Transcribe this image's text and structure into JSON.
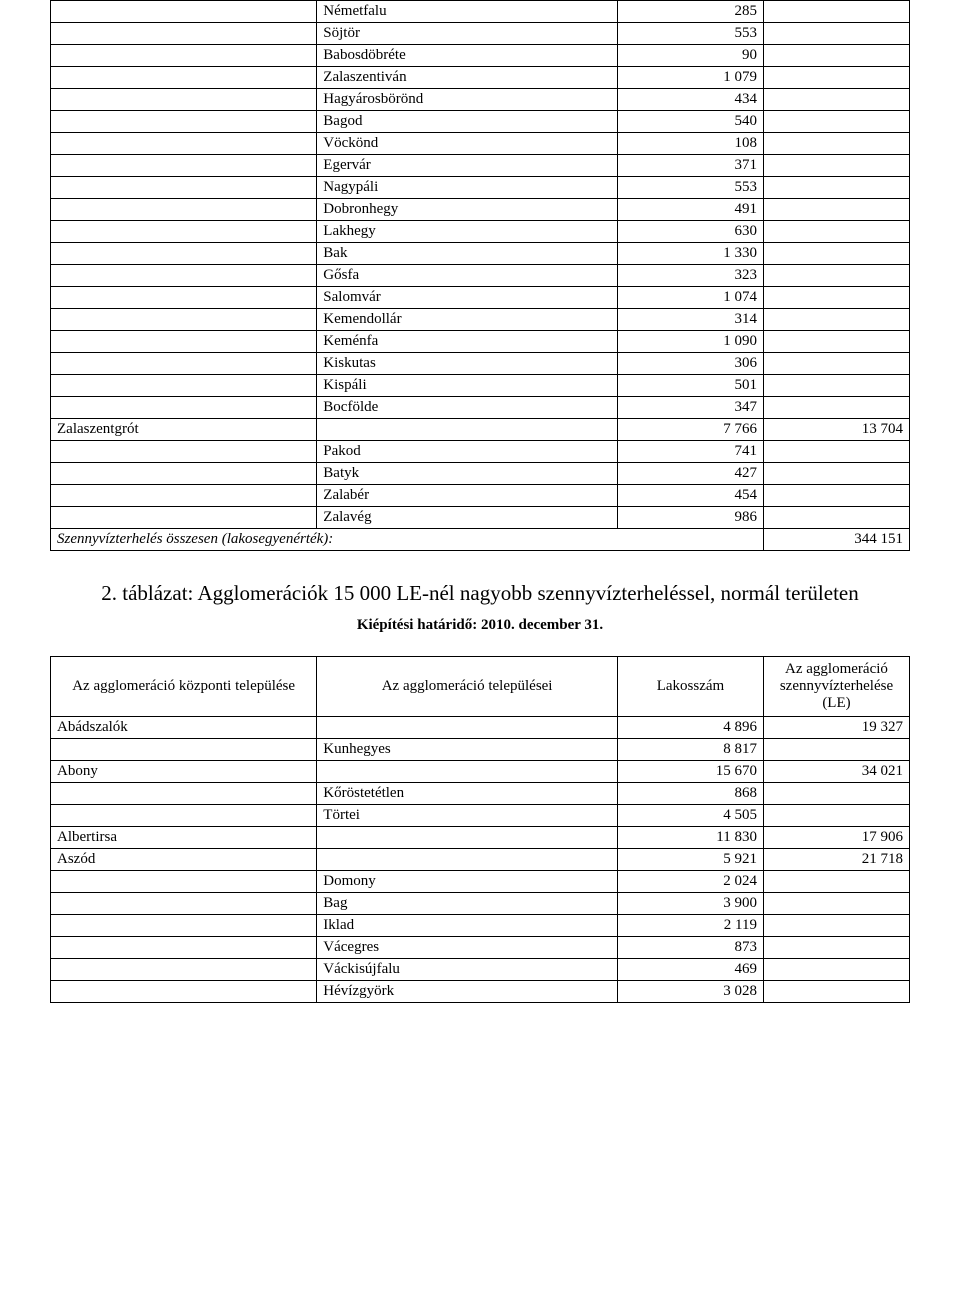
{
  "table1": {
    "rows": [
      {
        "c1": "",
        "c2": "Németfalu",
        "c3": "285",
        "c4": ""
      },
      {
        "c1": "",
        "c2": "Söjtör",
        "c3": "553",
        "c4": ""
      },
      {
        "c1": "",
        "c2": "Babosdöbréte",
        "c3": "90",
        "c4": ""
      },
      {
        "c1": "",
        "c2": "Zalaszentiván",
        "c3": "1 079",
        "c4": ""
      },
      {
        "c1": "",
        "c2": "Hagyárosbörönd",
        "c3": "434",
        "c4": ""
      },
      {
        "c1": "",
        "c2": "Bagod",
        "c3": "540",
        "c4": ""
      },
      {
        "c1": "",
        "c2": "Vöckönd",
        "c3": "108",
        "c4": ""
      },
      {
        "c1": "",
        "c2": "Egervár",
        "c3": "371",
        "c4": ""
      },
      {
        "c1": "",
        "c2": "Nagypáli",
        "c3": "553",
        "c4": ""
      },
      {
        "c1": "",
        "c2": "Dobronhegy",
        "c3": "491",
        "c4": ""
      },
      {
        "c1": "",
        "c2": "Lakhegy",
        "c3": "630",
        "c4": ""
      },
      {
        "c1": "",
        "c2": "Bak",
        "c3": "1 330",
        "c4": ""
      },
      {
        "c1": "",
        "c2": "Gősfa",
        "c3": "323",
        "c4": ""
      },
      {
        "c1": "",
        "c2": "Salomvár",
        "c3": "1 074",
        "c4": ""
      },
      {
        "c1": "",
        "c2": "Kemendollár",
        "c3": "314",
        "c4": ""
      },
      {
        "c1": "",
        "c2": "Keménfa",
        "c3": "1 090",
        "c4": ""
      },
      {
        "c1": "",
        "c2": "Kiskutas",
        "c3": "306",
        "c4": ""
      },
      {
        "c1": "",
        "c2": "Kispáli",
        "c3": "501",
        "c4": ""
      },
      {
        "c1": "",
        "c2": "Bocfölde",
        "c3": "347",
        "c4": ""
      },
      {
        "c1": "Zalaszentgrót",
        "c2": "",
        "c3": "7 766",
        "c4": "13 704"
      },
      {
        "c1": "",
        "c2": "Pakod",
        "c3": "741",
        "c4": ""
      },
      {
        "c1": "",
        "c2": "Batyk",
        "c3": "427",
        "c4": ""
      },
      {
        "c1": "",
        "c2": "Zalabér",
        "c3": "454",
        "c4": ""
      },
      {
        "c1": "",
        "c2": "Zalavég",
        "c3": "986",
        "c4": ""
      }
    ],
    "total_label": "Szennyvízterhelés összesen (lakosegyenérték):",
    "total_value": "344 151"
  },
  "section": {
    "title": "2. táblázat: Agglomerációk 15 000 LE-nél nagyobb szennyvízterheléssel, normál területen",
    "subtitle": "Kiépítési határidő: 2010. december 31."
  },
  "table2": {
    "headers": {
      "h1": "Az agglomeráció központi települése",
      "h2": "Az agglomeráció települései",
      "h3": "Lakosszám",
      "h4": "Az agglomeráció szennyvízterhelése (LE)"
    },
    "rows": [
      {
        "c1": "Abádszalók",
        "c2": "",
        "c3": "4 896",
        "c4": "19 327"
      },
      {
        "c1": "",
        "c2": "Kunhegyes",
        "c3": "8 817",
        "c4": ""
      },
      {
        "c1": "Abony",
        "c2": "",
        "c3": "15 670",
        "c4": "34 021"
      },
      {
        "c1": "",
        "c2": "Kőröstetétlen",
        "c3": "868",
        "c4": ""
      },
      {
        "c1": "",
        "c2": "Törtei",
        "c3": "4 505",
        "c4": ""
      },
      {
        "c1": "Albertirsa",
        "c2": "",
        "c3": "11 830",
        "c4": "17 906"
      },
      {
        "c1": "Aszód",
        "c2": "",
        "c3": "5 921",
        "c4": "21 718"
      },
      {
        "c1": "",
        "c2": "Domony",
        "c3": "2 024",
        "c4": ""
      },
      {
        "c1": "",
        "c2": "Bag",
        "c3": "3 900",
        "c4": ""
      },
      {
        "c1": "",
        "c2": "Iklad",
        "c3": "2 119",
        "c4": ""
      },
      {
        "c1": "",
        "c2": "Vácegres",
        "c3": "873",
        "c4": ""
      },
      {
        "c1": "",
        "c2": "Váckisújfalu",
        "c3": "469",
        "c4": ""
      },
      {
        "c1": "",
        "c2": "Hévízgyörk",
        "c3": "3 028",
        "c4": ""
      }
    ]
  }
}
